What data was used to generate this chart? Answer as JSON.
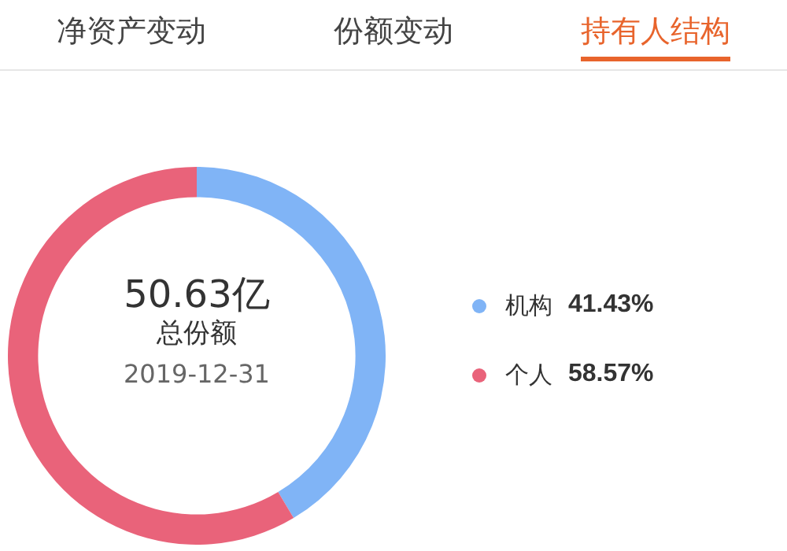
{
  "chart_data": {
    "type": "donut",
    "categories": [
      "机构",
      "个人"
    ],
    "values": [
      41.43,
      58.57
    ],
    "colors": [
      "#80b4f6",
      "#e9637a"
    ],
    "value_labels": [
      "41.43%",
      "58.57%"
    ],
    "legend": "right",
    "annotations": [
      "净资产变动",
      "份额变动",
      "持有人结构",
      "50.63亿",
      "总份额",
      "2019-12-31"
    ]
  }
}
